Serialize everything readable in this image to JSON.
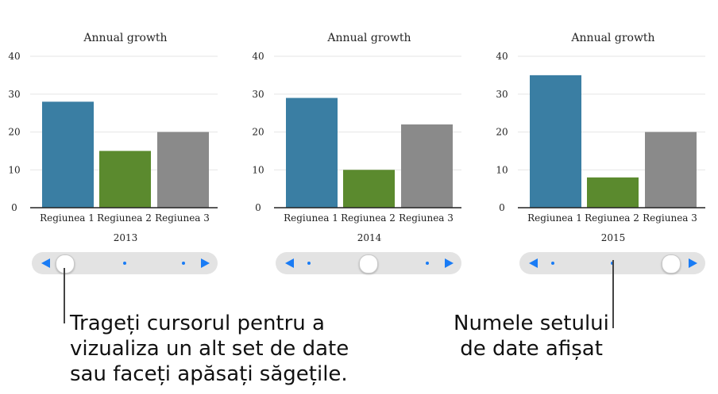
{
  "chart_data": [
    {
      "type": "bar",
      "title": "Annual growth",
      "xlabel": "2013",
      "categories": [
        "Regiunea 1",
        "Regiunea 2",
        "Regiunea 3"
      ],
      "values": [
        28,
        15,
        20
      ],
      "colors": [
        "#3a7ea3",
        "#5b8a2e",
        "#8a8a8a"
      ],
      "yticks": [
        0,
        10,
        20,
        30,
        40
      ],
      "ylim": [
        0,
        40
      ],
      "grid": true
    },
    {
      "type": "bar",
      "title": "Annual growth",
      "xlabel": "2014",
      "categories": [
        "Regiunea 1",
        "Regiunea 2",
        "Regiunea 3"
      ],
      "values": [
        29,
        10,
        22
      ],
      "colors": [
        "#3a7ea3",
        "#5b8a2e",
        "#8a8a8a"
      ],
      "yticks": [
        0,
        10,
        20,
        30,
        40
      ],
      "ylim": [
        0,
        40
      ],
      "grid": true
    },
    {
      "type": "bar",
      "title": "Annual growth",
      "xlabel": "2015",
      "categories": [
        "Regiunea 1",
        "Regiunea 2",
        "Regiunea 3"
      ],
      "values": [
        35,
        8,
        20
      ],
      "colors": [
        "#3a7ea3",
        "#5b8a2e",
        "#8a8a8a"
      ],
      "yticks": [
        0,
        10,
        20,
        30,
        40
      ],
      "ylim": [
        0,
        40
      ],
      "grid": true
    }
  ],
  "sliders": [
    {
      "selected_index": 0,
      "count": 3,
      "accent": "#1a7cf5"
    },
    {
      "selected_index": 1,
      "count": 3,
      "accent": "#1a7cf5"
    },
    {
      "selected_index": 2,
      "count": 3,
      "accent": "#1a7cf5"
    }
  ],
  "callouts": {
    "left": "Trageți cursorul pentru a\nvizualiza un alt set de date\nsau faceți apăsați săgețile.",
    "right": "Numele setului\n de date afișat"
  }
}
